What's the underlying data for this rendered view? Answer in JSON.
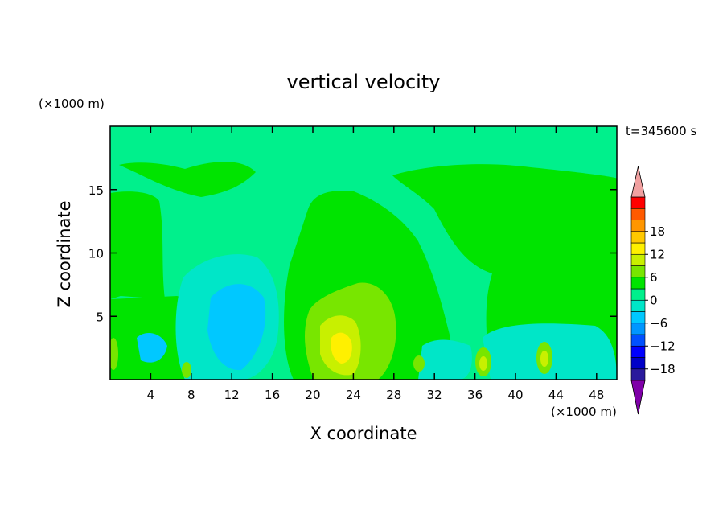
{
  "chart_data": {
    "type": "heatmap",
    "title": "vertical velocity",
    "xlabel": "X coordinate",
    "ylabel": "Z coordinate",
    "x_unit": "(×1000 m)",
    "y_unit": "(×1000 m)",
    "time_label": "t=345600 s",
    "xlim": [
      0,
      50
    ],
    "ylim": [
      0,
      20
    ],
    "x_ticks": [
      4,
      8,
      12,
      16,
      20,
      24,
      28,
      32,
      36,
      40,
      44,
      48
    ],
    "y_ticks": [
      5,
      10,
      15
    ],
    "colorbar": {
      "ticks": [
        18,
        12,
        6,
        0,
        -6,
        -12,
        -18
      ],
      "levels": [
        -21,
        -18,
        -15,
        -12,
        -9,
        -6,
        -3,
        0,
        3,
        6,
        9,
        12,
        15,
        18,
        21
      ],
      "colors": [
        "#7f00a8",
        "#2a1a9c",
        "#0000c8",
        "#0000ff",
        "#0050ff",
        "#0096ff",
        "#00c8ff",
        "#00e6c8",
        "#00f08c",
        "#00e400",
        "#78e600",
        "#c8f000",
        "#fff000",
        "#ffc800",
        "#ff9600",
        "#ff5a00",
        "#ff0000",
        "#f0a0a0"
      ],
      "extend": "both"
    },
    "field_description_levels": {
      "background": 0,
      "features": [
        {
          "x": 23,
          "z": 2.8,
          "value": 9
        },
        {
          "x": 13,
          "z": 5,
          "value": -6
        },
        {
          "x": 12,
          "z": 2,
          "value": -6
        },
        {
          "x": 36.5,
          "z": 1.5,
          "value": 6
        },
        {
          "x": 43,
          "z": 1.8,
          "value": 6
        },
        {
          "x": 0.5,
          "z": 2,
          "value": 6
        }
      ]
    }
  }
}
